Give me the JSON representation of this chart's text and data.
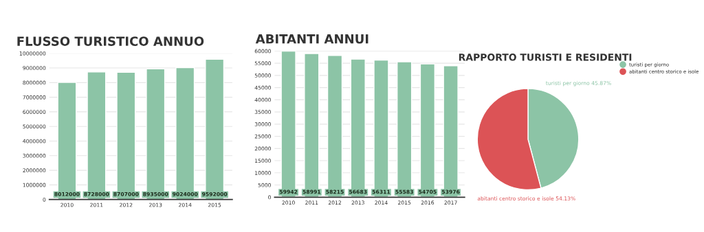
{
  "chart_data": [
    {
      "type": "bar",
      "title": "FLUSSO TURISTICO ANNUO",
      "categories": [
        "2010",
        "2011",
        "2012",
        "2013",
        "2014",
        "2015"
      ],
      "values": [
        8012000,
        8728000,
        8707000,
        8935000,
        9024000,
        9592000
      ],
      "color": "#8cc4a6",
      "ylim": [
        0,
        10000000
      ],
      "yticks": [
        0,
        1000000,
        2000000,
        3000000,
        4000000,
        5000000,
        6000000,
        7000000,
        8000000,
        9000000,
        10000000
      ],
      "grid": "y",
      "data_labels": true
    },
    {
      "type": "bar",
      "title": "ABITANTI ANNUI",
      "categories": [
        "2010",
        "2011",
        "2012",
        "2013",
        "2014",
        "2015",
        "2016",
        "2017"
      ],
      "values": [
        59942,
        58991,
        58215,
        56683,
        56311,
        55583,
        54705,
        53976
      ],
      "color": "#8cc4a6",
      "ylim": [
        0,
        60000
      ],
      "yticks": [
        0,
        5000,
        10000,
        15000,
        20000,
        25000,
        30000,
        35000,
        40000,
        45000,
        50000,
        55000,
        60000
      ],
      "grid": "y",
      "data_labels": true
    },
    {
      "type": "pie",
      "title": "RAPPORTO TURISTI E RESIDENTI",
      "categories": [
        "turisti per giorno",
        "abitanti centro storico e isole"
      ],
      "values": [
        45.87,
        54.13
      ],
      "colors": [
        "#8cc4a6",
        "#dc5356"
      ],
      "value_labels": [
        "turisti per giorno 45.87%",
        "abitanti centro storico e isole 54.13%"
      ],
      "legend": "top right"
    }
  ]
}
